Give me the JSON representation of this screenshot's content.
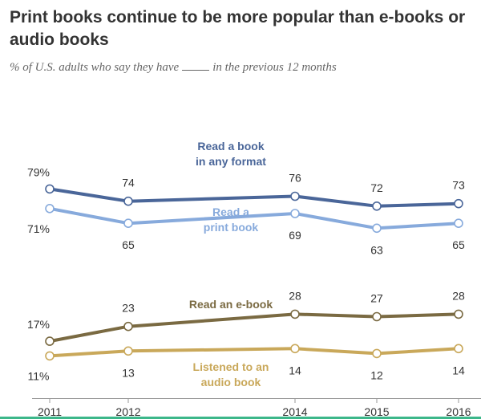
{
  "header": {
    "title": "Print books continue to be more popular than e-books or audio books",
    "subtitle_before": "% of U.S. adults who say they have",
    "subtitle_after": "in the previous 12 months"
  },
  "colors": {
    "any_format": "#4a6699",
    "print_book": "#87aadc",
    "ebook": "#7a6a42",
    "audio": "#c9a85a",
    "axis": "#999999",
    "value_text": "#333333",
    "bottom_rule": "#3cb78a"
  },
  "chart_data": {
    "type": "line",
    "title": "Print books continue to be more popular than e-books or audio books",
    "subtitle": "% of U.S. adults who say they have ____ in the previous 12 months",
    "x": [
      2011,
      2012,
      2014,
      2015,
      2016
    ],
    "x_tick_labels": [
      "2011",
      "2012",
      "2014",
      "2015",
      "2016"
    ],
    "ylim": [
      0,
      100
    ],
    "grid": false,
    "series": [
      {
        "key": "any_format",
        "name": "Read a book in any format",
        "name_lines": [
          "Read a book",
          "in any format"
        ],
        "values": [
          79,
          74,
          76,
          72,
          73
        ],
        "value_labels": [
          "79%",
          "74",
          "76",
          "72",
          "73"
        ],
        "label_position": "above"
      },
      {
        "key": "print_book",
        "name": "Read a print book",
        "name_lines": [
          "Read a",
          "print book"
        ],
        "values": [
          71,
          65,
          69,
          63,
          65
        ],
        "value_labels": [
          "71%",
          "65",
          "69",
          "63",
          "65"
        ],
        "label_position": "below"
      },
      {
        "key": "ebook",
        "name": "Read an e-book",
        "name_lines": [
          "Read an e-book"
        ],
        "values": [
          17,
          23,
          28,
          27,
          28
        ],
        "value_labels": [
          "17%",
          "23",
          "28",
          "27",
          "28"
        ],
        "label_position": "above"
      },
      {
        "key": "audio",
        "name": "Listened to an audio book",
        "name_lines": [
          "Listened to an",
          "audio book"
        ],
        "values": [
          11,
          13,
          14,
          12,
          14
        ],
        "value_labels": [
          "11%",
          "13",
          "14",
          "12",
          "14"
        ],
        "label_position": "below"
      }
    ]
  }
}
